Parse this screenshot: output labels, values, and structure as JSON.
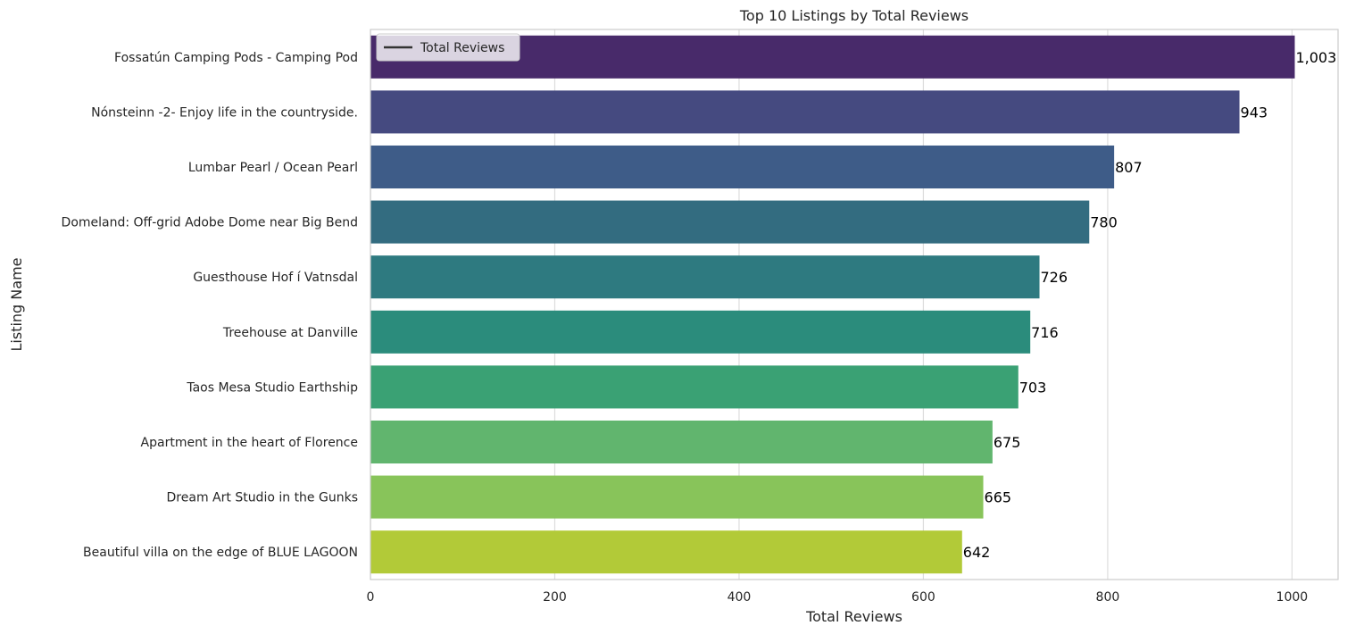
{
  "chart_data": {
    "type": "bar",
    "orientation": "horizontal",
    "title": "Top 10 Listings by Total Reviews",
    "xlabel": "Total Reviews",
    "ylabel": "Listing Name",
    "xlim": [
      0,
      1050
    ],
    "xticks": [
      0,
      200,
      400,
      600,
      800,
      1000
    ],
    "grid": "vertical",
    "legend": {
      "label": "Total Reviews",
      "position": "top-left"
    },
    "categories": [
      "Fossatún Camping Pods - Camping Pod",
      "Nónsteinn -2-  Enjoy life in the countryside.",
      "Lumbar Pearl / Ocean Pearl",
      "Domeland:  Off-grid Adobe Dome near Big Bend",
      "Guesthouse Hof í Vatnsdal",
      "Treehouse at Danville",
      "Taos Mesa Studio Earthship",
      "Apartment in the heart of Florence",
      "Dream Art Studio in the Gunks",
      "Beautiful villa on the edge of BLUE LAGOON"
    ],
    "values": [
      1003,
      943,
      807,
      780,
      726,
      716,
      703,
      675,
      665,
      642
    ],
    "value_labels": [
      "1,003",
      "943",
      "807",
      "780",
      "726",
      "716",
      "703",
      "675",
      "665",
      "642"
    ],
    "colors": [
      "#482a6a",
      "#454a80",
      "#3e5c88",
      "#336c80",
      "#2e7a80",
      "#2b8c7c",
      "#3aa174",
      "#61b56e",
      "#88c45a",
      "#b2ca38"
    ]
  }
}
